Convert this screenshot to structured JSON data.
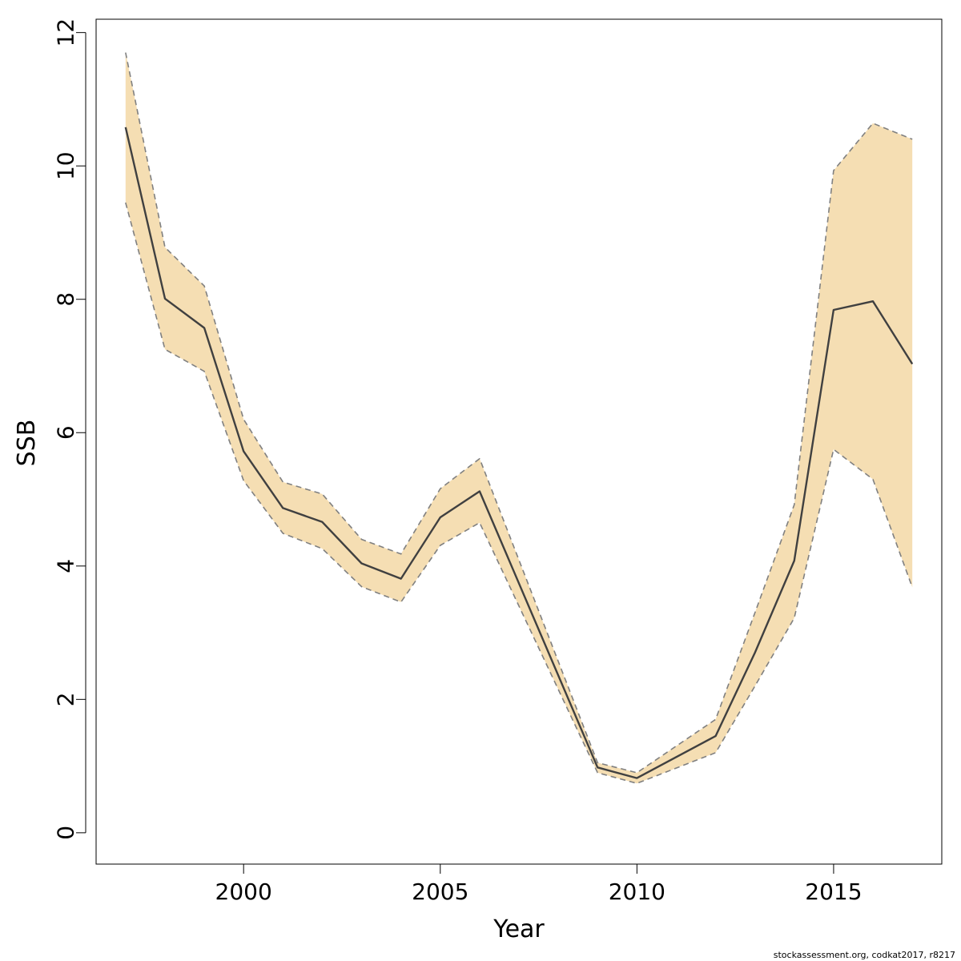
{
  "chart_data": {
    "type": "line",
    "title": "",
    "xlabel": "Year",
    "ylabel": "SSB",
    "xlim": [
      1996.25,
      2017.75
    ],
    "ylim": [
      -0.47,
      12.2
    ],
    "x_ticks": [
      2000,
      2005,
      2010,
      2015
    ],
    "y_ticks": [
      0,
      2,
      4,
      6,
      8,
      10,
      12
    ],
    "x_tick_labels": [
      "2000",
      "2005",
      "2010",
      "2015"
    ],
    "y_tick_labels": [
      "0",
      "2",
      "4",
      "6",
      "8",
      "10",
      "12"
    ],
    "grid": false,
    "legend": "none",
    "x": [
      1997,
      1998,
      1999,
      2000,
      2001,
      2002,
      2003,
      2004,
      2005,
      2006,
      2009,
      2010,
      2012,
      2013,
      2014,
      2015,
      2016,
      2017
    ],
    "series": [
      {
        "role": "estimate",
        "style": "solid",
        "values": [
          10.58,
          8.01,
          7.57,
          5.72,
          4.87,
          4.66,
          4.04,
          3.81,
          4.73,
          5.12,
          0.98,
          0.82,
          1.45,
          2.7,
          4.08,
          7.84,
          7.97,
          7.03
        ]
      },
      {
        "role": "upper_bound",
        "style": "dashed",
        "values": [
          11.7,
          8.78,
          8.2,
          6.2,
          5.26,
          5.08,
          4.4,
          4.18,
          5.16,
          5.61,
          1.05,
          0.9,
          1.7,
          3.3,
          4.92,
          9.93,
          10.64,
          10.4
        ]
      },
      {
        "role": "lower_bound",
        "style": "dashed",
        "values": [
          9.45,
          7.25,
          6.92,
          5.28,
          4.49,
          4.26,
          3.69,
          3.46,
          4.31,
          4.65,
          0.9,
          0.74,
          1.2,
          2.2,
          3.22,
          5.75,
          5.3,
          3.68
        ]
      }
    ],
    "colors": {
      "band_fill": "#f5deb3",
      "line": "#404040",
      "bound_line": "#808080",
      "axis": "#000000"
    }
  },
  "footer": {
    "note": "stockassessment.org, codkat2017, r8217"
  }
}
